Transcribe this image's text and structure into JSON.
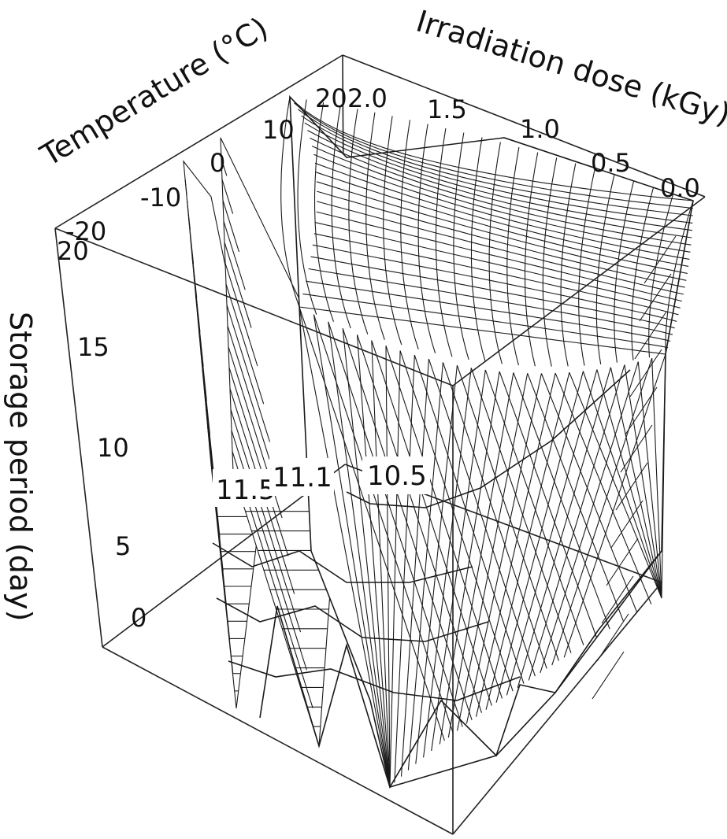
{
  "chart_data": {
    "type": "3d-surface",
    "title": "",
    "axes": {
      "temperature": {
        "label": "Temperature (°C)",
        "ticks": [
          "-20",
          "-10",
          "0",
          "10",
          "20"
        ],
        "range": [
          -20,
          20
        ]
      },
      "irradiation_dose": {
        "label": "Irradiation dose (kGy)",
        "ticks": [
          "2.0",
          "1.5",
          "1.0",
          "0.5",
          "0.0"
        ],
        "range": [
          0.0,
          2.0
        ]
      },
      "storage_period": {
        "label": "Storage period (day)",
        "ticks": [
          "0",
          "5",
          "10",
          "15",
          "20"
        ],
        "range": [
          0,
          20
        ]
      }
    },
    "contour_levels": [
      {
        "value": 11.5,
        "text": "11.5"
      },
      {
        "value": 11.1,
        "text": "11.1"
      },
      {
        "value": 10.5,
        "text": "10.5"
      }
    ],
    "grid": false,
    "legend": "none"
  }
}
